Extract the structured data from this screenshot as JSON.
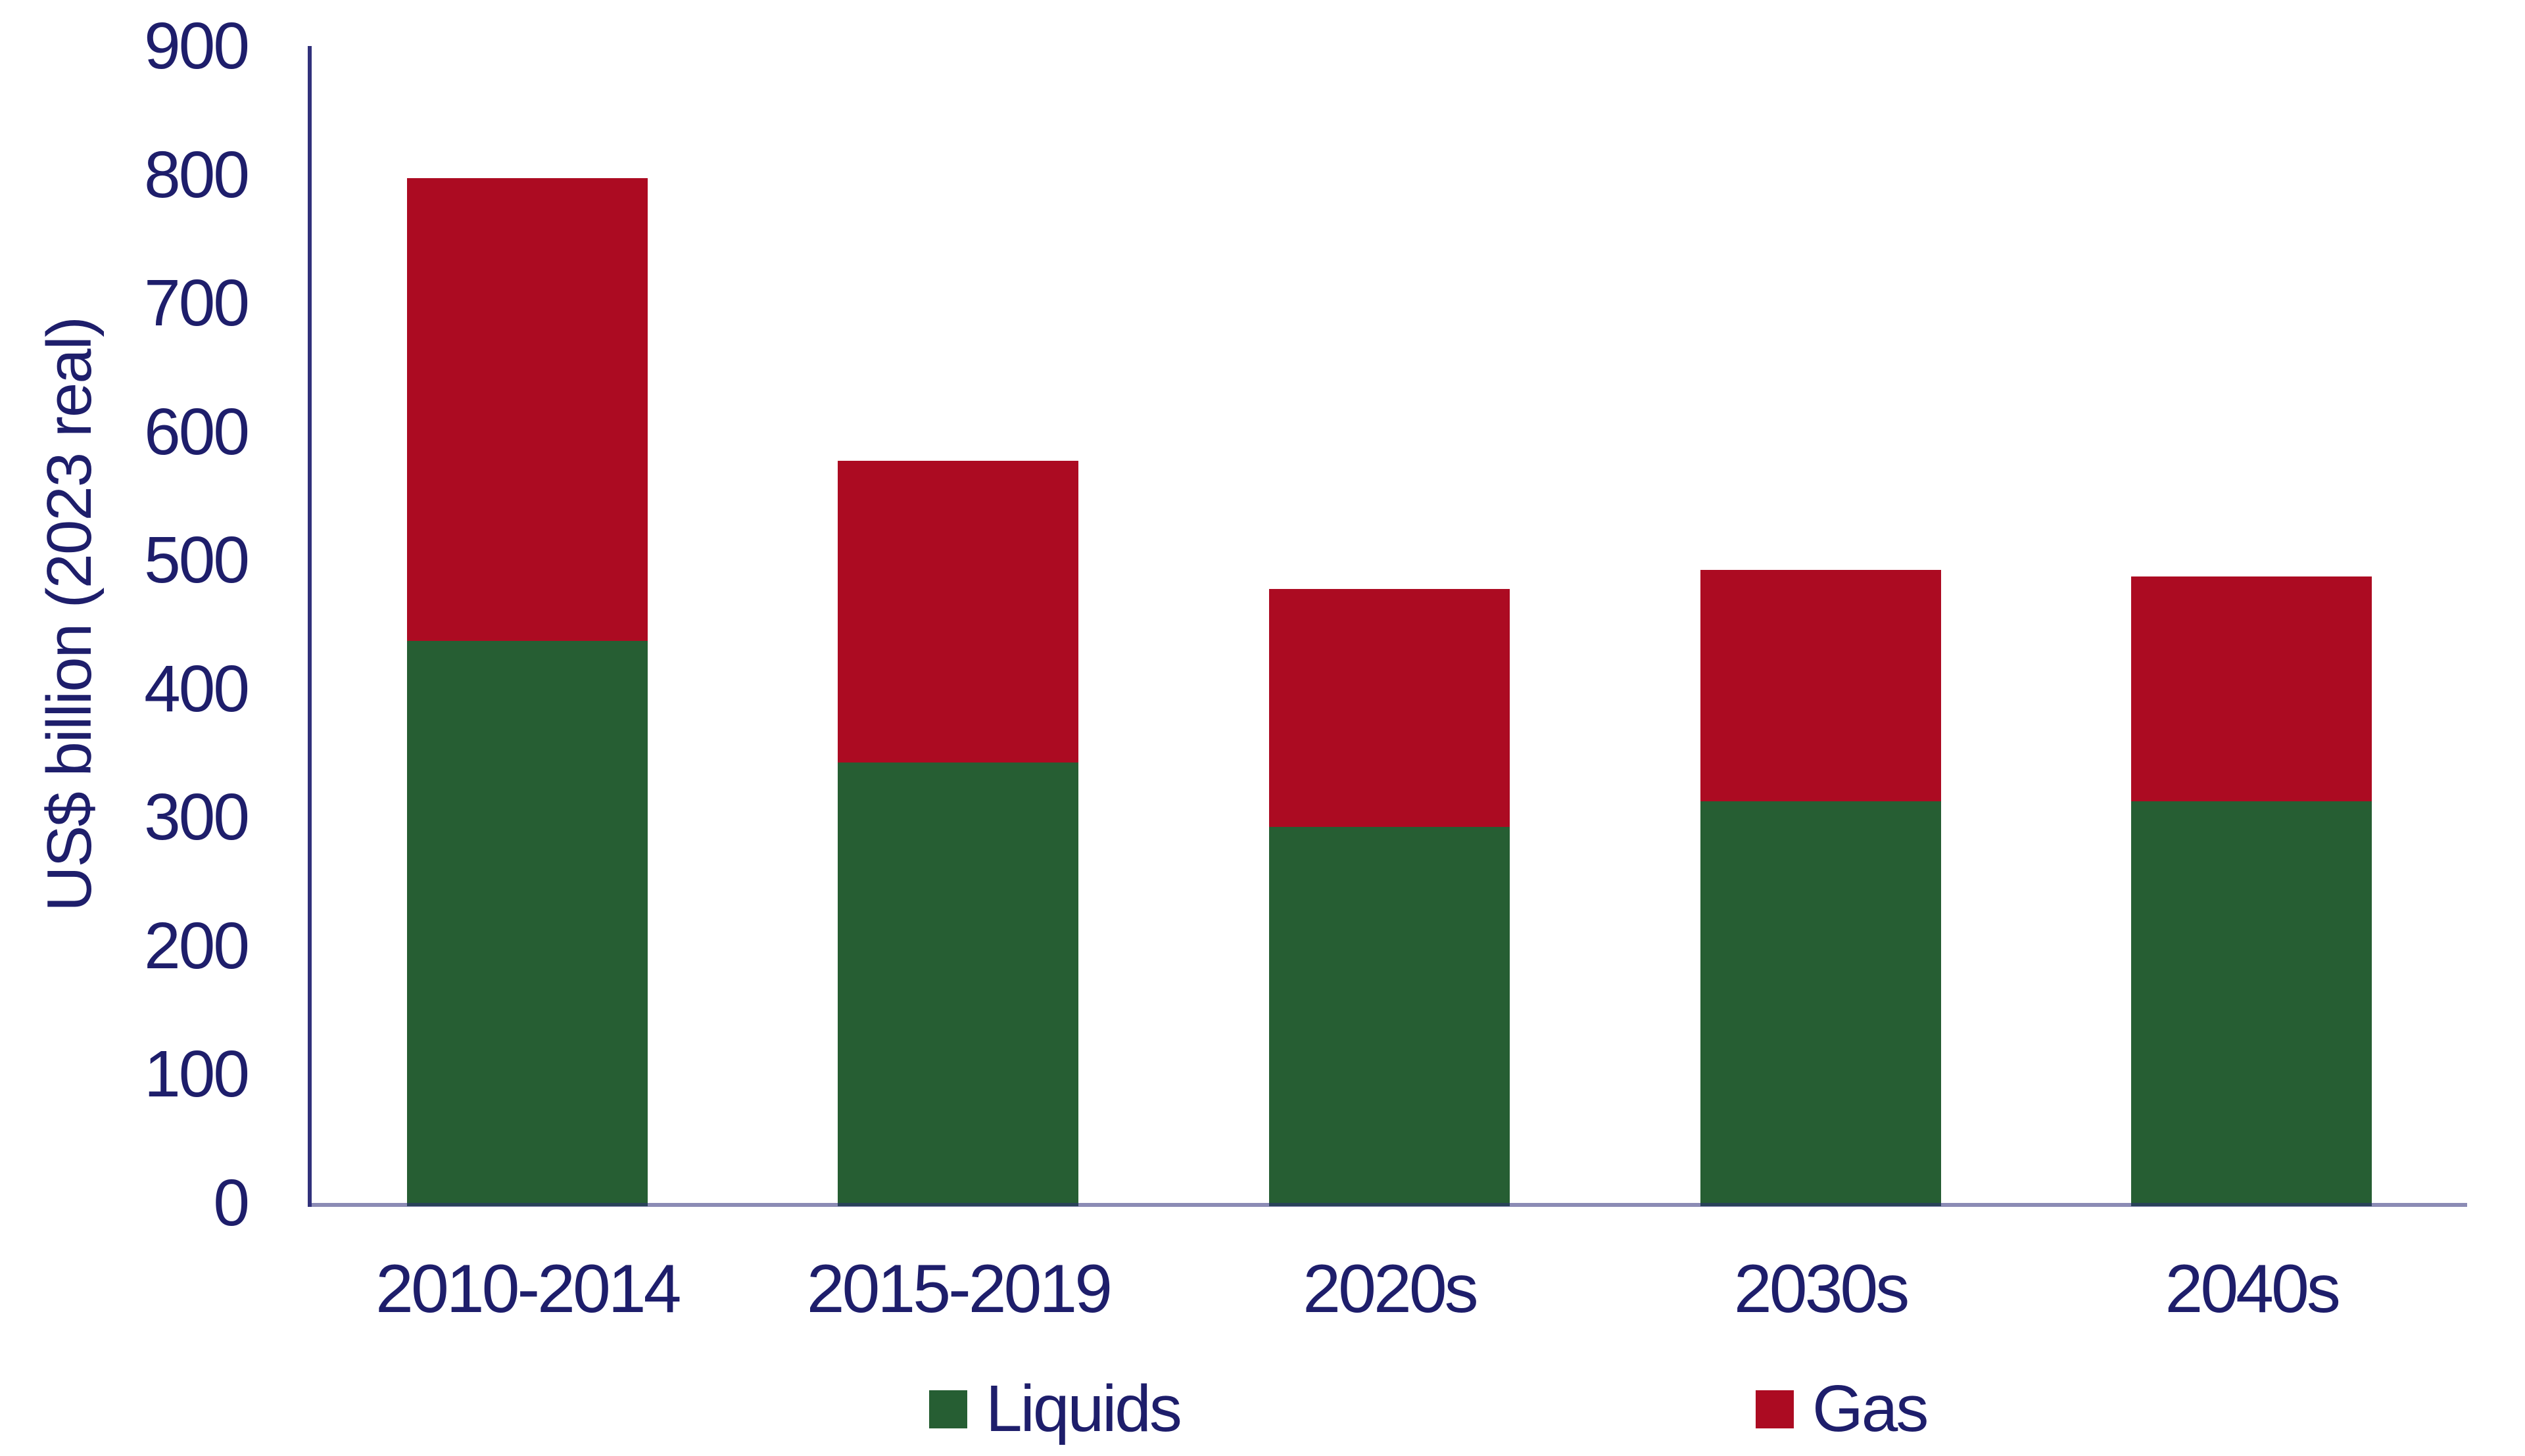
{
  "chart_data": {
    "type": "bar",
    "stacked": true,
    "categories": [
      "2010-2014",
      "2015-2019",
      "2020s",
      "2030s",
      "2040s"
    ],
    "series": [
      {
        "name": "Liquids",
        "color": "#265E33",
        "values": [
          440,
          345,
          295,
          315,
          315
        ]
      },
      {
        "name": "Gas",
        "color": "#AC0B22",
        "values": [
          360,
          235,
          185,
          180,
          175
        ]
      }
    ],
    "totals": [
      800,
      580,
      480,
      495,
      490
    ],
    "title": "",
    "xlabel": "",
    "ylabel": "US$ billion (2023 real)",
    "ylim": [
      0,
      900
    ],
    "yticks": [
      0,
      100,
      200,
      300,
      400,
      500,
      600,
      700,
      800,
      900
    ],
    "grid": false,
    "legend_position": "bottom"
  },
  "colors": {
    "text": "#1E1E6B",
    "y_axis_line": "#31317B",
    "baseline": "#8A8ABD",
    "background": "#FFFFFF",
    "liquids": "#265E33",
    "gas": "#AC0B22"
  }
}
